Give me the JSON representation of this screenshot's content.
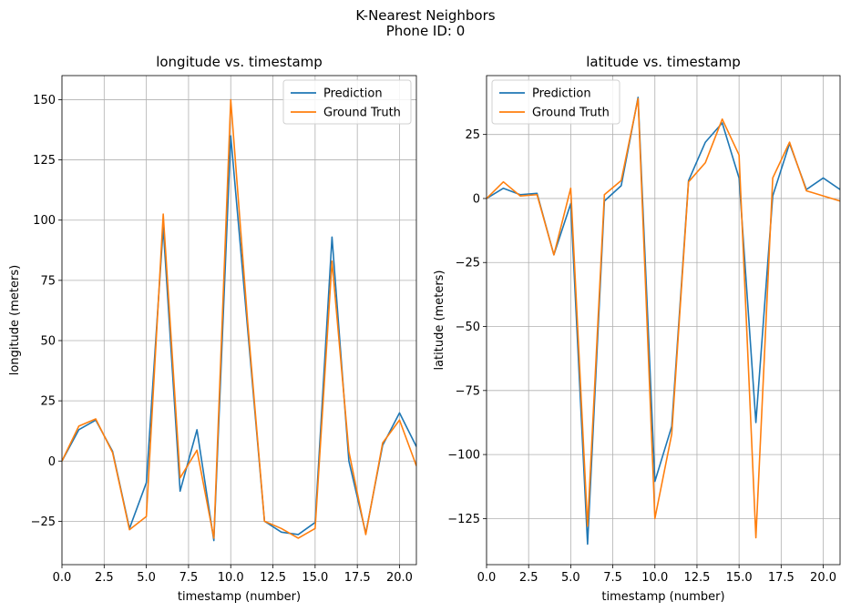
{
  "figure": {
    "title_line1": "K-Nearest Neighbors",
    "title_line2": "Phone ID: 0"
  },
  "colors": {
    "prediction": "#1f77b4",
    "ground_truth": "#ff7f0e",
    "grid": "#b0b0b0"
  },
  "chart_data": [
    {
      "type": "line",
      "title": "longitude vs. timestamp",
      "xlabel": "timestamp (number)",
      "ylabel": "longitude (meters)",
      "xlim": [
        0,
        21
      ],
      "ylim": [
        -43,
        160
      ],
      "xticks": [
        0,
        2.5,
        5,
        7.5,
        10,
        12.5,
        15,
        17.5,
        20
      ],
      "xtick_labels": [
        "0.0",
        "2.5",
        "5.0",
        "7.5",
        "10.0",
        "12.5",
        "15.0",
        "17.5",
        "20.0"
      ],
      "yticks": [
        -25,
        0,
        25,
        50,
        75,
        100,
        125,
        150
      ],
      "ytick_labels": [
        "−25",
        "0",
        "25",
        "50",
        "75",
        "100",
        "125",
        "150"
      ],
      "grid": true,
      "legend": "top-right",
      "x": [
        0,
        1,
        2,
        3,
        4,
        5,
        6,
        7,
        8,
        9,
        10,
        11,
        12,
        13,
        14,
        15,
        16,
        17,
        18,
        19,
        20,
        21
      ],
      "series": [
        {
          "name": "Prediction",
          "values": [
            0,
            13,
            17,
            4,
            -28,
            -9,
            97,
            -12.5,
            13,
            -33,
            135,
            55,
            -25,
            -29.5,
            -30.5,
            -25.5,
            93,
            0,
            -30,
            6.5,
            20,
            6
          ]
        },
        {
          "name": "Ground Truth",
          "values": [
            0,
            14.5,
            17.5,
            3.5,
            -28.5,
            -23,
            102.5,
            -7,
            4.5,
            -32,
            150,
            58,
            -25,
            -28,
            -32,
            -28,
            83,
            4,
            -30.5,
            7.5,
            17,
            -2
          ]
        }
      ]
    },
    {
      "type": "line",
      "title": "latitude vs. timestamp",
      "xlabel": "timestamp (number)",
      "ylabel": "latitude (meters)",
      "xlim": [
        0,
        21
      ],
      "ylim": [
        -143,
        48
      ],
      "xticks": [
        0,
        2.5,
        5,
        7.5,
        10,
        12.5,
        15,
        17.5,
        20
      ],
      "xtick_labels": [
        "0.0",
        "2.5",
        "5.0",
        "7.5",
        "10.0",
        "12.5",
        "15.0",
        "17.5",
        "20.0"
      ],
      "yticks": [
        -125,
        -100,
        -75,
        -50,
        -25,
        0,
        25
      ],
      "ytick_labels": [
        "−125",
        "−100",
        "−75",
        "−50",
        "−25",
        "0",
        "25"
      ],
      "grid": true,
      "legend": "top-left",
      "x": [
        0,
        1,
        2,
        3,
        4,
        5,
        6,
        7,
        8,
        9,
        10,
        11,
        12,
        13,
        14,
        15,
        16,
        17,
        18,
        19,
        20,
        21
      ],
      "series": [
        {
          "name": "Prediction",
          "values": [
            0,
            4,
            1.5,
            2,
            -22,
            -2,
            -135,
            -1,
            5,
            39.5,
            -110.5,
            -89,
            7,
            22,
            29.5,
            8,
            -87.5,
            1,
            21.5,
            3.5,
            8,
            3.5
          ]
        },
        {
          "name": "Ground Truth",
          "values": [
            0,
            6.5,
            1,
            1.5,
            -22,
            4,
            -128,
            1.5,
            7,
            39,
            -125,
            -92,
            6.5,
            14,
            31,
            17,
            -132.5,
            8,
            22,
            3,
            1,
            -1
          ]
        }
      ]
    }
  ]
}
